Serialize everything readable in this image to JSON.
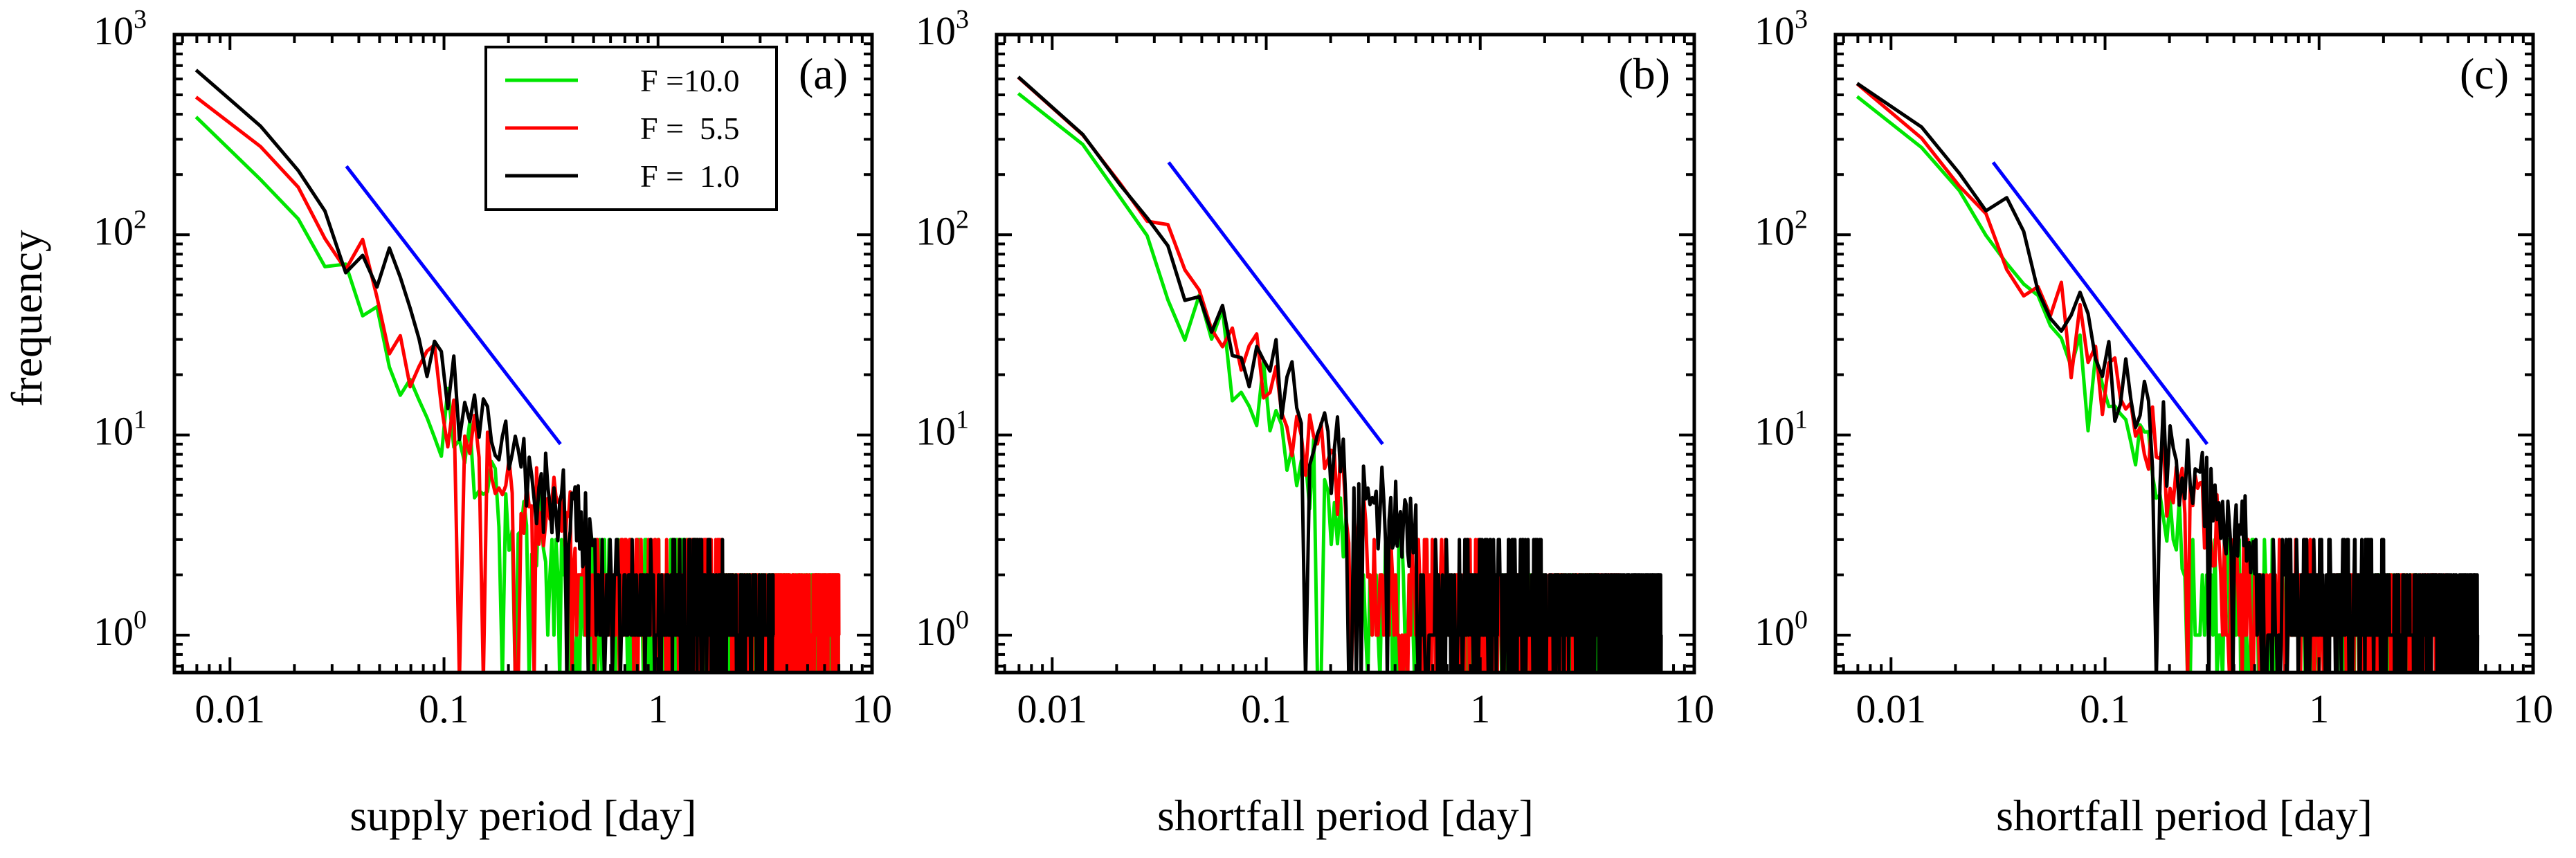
{
  "figure": {
    "ylabel": "frequency",
    "legend": {
      "panel": "a",
      "entries": [
        {
          "label": "F =10.0",
          "color": "#00e600"
        },
        {
          "label": "F =  5.5",
          "color": "#ff0000"
        },
        {
          "label": "F =  1.0",
          "color": "#000000"
        }
      ]
    },
    "reference_line_color": "#0000ff"
  },
  "chart_data": [
    {
      "type": "line",
      "panel_label": "(a)",
      "xlabel": "supply period  [day]",
      "ylabel": "frequency",
      "xscale": "log",
      "yscale": "log",
      "xlim": [
        0.0055,
        10
      ],
      "ylim": [
        0.65,
        1000
      ],
      "x_ticks": [
        0.01,
        0.1,
        1,
        10
      ],
      "x_tick_labels": [
        "0.01",
        "0.1",
        "1",
        "10"
      ],
      "y_ticks": [
        1,
        10,
        100,
        1000
      ],
      "y_tick_labels": [
        {
          "base": "10",
          "exp": "0"
        },
        {
          "base": "10",
          "exp": "1"
        },
        {
          "base": "10",
          "exp": "2"
        },
        {
          "base": "10",
          "exp": "3"
        }
      ],
      "reference_line": {
        "x": [
          0.035,
          0.35
        ],
        "y": [
          220,
          9
        ],
        "label": "power-law guide"
      },
      "series": [
        {
          "name": "F =10.0",
          "color": "#00e600",
          "x_end": 7.0,
          "key_points": [
            [
              0.007,
              400
            ],
            [
              0.014,
              180
            ],
            [
              0.02,
              130
            ],
            [
              0.028,
              70
            ],
            [
              0.04,
              50
            ],
            [
              0.055,
              30
            ],
            [
              0.075,
              15
            ],
            [
              0.1,
              12
            ],
            [
              0.14,
              8
            ],
            [
              0.2,
              4
            ],
            [
              0.3,
              3
            ],
            [
              0.5,
              2
            ],
            [
              1.0,
              1.5
            ],
            [
              2.0,
              1.2
            ],
            [
              4.0,
              1
            ],
            [
              7.0,
              1
            ]
          ]
        },
        {
          "name": "F =  5.5",
          "color": "#ff0000",
          "x_end": 7.0,
          "key_points": [
            [
              0.007,
              500
            ],
            [
              0.014,
              270
            ],
            [
              0.02,
              180
            ],
            [
              0.028,
              90
            ],
            [
              0.04,
              70
            ],
            [
              0.055,
              40
            ],
            [
              0.075,
              22
            ],
            [
              0.1,
              15
            ],
            [
              0.14,
              9
            ],
            [
              0.2,
              6
            ],
            [
              0.3,
              4
            ],
            [
              0.5,
              2.5
            ],
            [
              1.0,
              1.6
            ],
            [
              2.0,
              1.3
            ],
            [
              4.0,
              1
            ],
            [
              7.0,
              1
            ]
          ]
        },
        {
          "name": "F =  1.0",
          "color": "#000000",
          "x_end": 3.5,
          "key_points": [
            [
              0.007,
              680
            ],
            [
              0.014,
              350
            ],
            [
              0.02,
              230
            ],
            [
              0.028,
              130
            ],
            [
              0.04,
              95
            ],
            [
              0.055,
              55
            ],
            [
              0.075,
              30
            ],
            [
              0.1,
              20
            ],
            [
              0.14,
              12
            ],
            [
              0.2,
              8
            ],
            [
              0.3,
              5
            ],
            [
              0.5,
              3
            ],
            [
              1.0,
              2
            ],
            [
              2.0,
              1.3
            ],
            [
              3.5,
              1
            ]
          ]
        }
      ]
    },
    {
      "type": "line",
      "panel_label": "(b)",
      "xlabel": "shortfall period  [day]",
      "ylabel": "frequency",
      "xscale": "log",
      "yscale": "log",
      "xlim": [
        0.0055,
        10
      ],
      "ylim": [
        0.65,
        1000
      ],
      "x_ticks": [
        0.01,
        0.1,
        1,
        10
      ],
      "x_tick_labels": [
        "0.01",
        "0.1",
        "1",
        "10"
      ],
      "y_ticks": [
        1,
        10,
        100,
        1000
      ],
      "y_tick_labels": [
        {
          "base": "10",
          "exp": "0"
        },
        {
          "base": "10",
          "exp": "1"
        },
        {
          "base": "10",
          "exp": "2"
        },
        {
          "base": "10",
          "exp": "3"
        }
      ],
      "reference_line": {
        "x": [
          0.035,
          0.35
        ],
        "y": [
          230,
          9
        ],
        "label": "power-law guide"
      },
      "series": [
        {
          "name": "F =10.0",
          "color": "#00e600",
          "x_end": 3.5,
          "key_points": [
            [
              0.007,
              500
            ],
            [
              0.014,
              280
            ],
            [
              0.02,
              170
            ],
            [
              0.028,
              100
            ],
            [
              0.04,
              50
            ],
            [
              0.055,
              35
            ],
            [
              0.075,
              22
            ],
            [
              0.1,
              15
            ],
            [
              0.14,
              9
            ],
            [
              0.2,
              4
            ],
            [
              0.3,
              2.2
            ],
            [
              0.5,
              1.4
            ],
            [
              1.0,
              1.1
            ],
            [
              2.0,
              1
            ],
            [
              3.5,
              1
            ]
          ]
        },
        {
          "name": "F =  5.5",
          "color": "#ff0000",
          "x_end": 4.5,
          "key_points": [
            [
              0.007,
              600
            ],
            [
              0.014,
              320
            ],
            [
              0.02,
              190
            ],
            [
              0.028,
              110
            ],
            [
              0.04,
              65
            ],
            [
              0.055,
              45
            ],
            [
              0.075,
              28
            ],
            [
              0.1,
              20
            ],
            [
              0.14,
              12
            ],
            [
              0.2,
              6
            ],
            [
              0.3,
              3
            ],
            [
              0.5,
              2
            ],
            [
              1.0,
              1.3
            ],
            [
              2.0,
              1.1
            ],
            [
              4.5,
              1
            ]
          ]
        },
        {
          "name": "F =  1.0",
          "color": "#000000",
          "x_end": 7.0,
          "key_points": [
            [
              0.007,
              600
            ],
            [
              0.014,
              330
            ],
            [
              0.02,
              200
            ],
            [
              0.028,
              120
            ],
            [
              0.04,
              75
            ],
            [
              0.055,
              50
            ],
            [
              0.075,
              32
            ],
            [
              0.1,
              22
            ],
            [
              0.14,
              13
            ],
            [
              0.2,
              8
            ],
            [
              0.3,
              5
            ],
            [
              0.5,
              3
            ],
            [
              1.0,
              2
            ],
            [
              2.0,
              1.3
            ],
            [
              4.0,
              1.1
            ],
            [
              7.0,
              1
            ]
          ]
        }
      ]
    },
    {
      "type": "line",
      "panel_label": "(c)",
      "xlabel": "shortfall period  [day]",
      "ylabel": "frequency",
      "xscale": "log",
      "yscale": "log",
      "xlim": [
        0.0055,
        10
      ],
      "ylim": [
        0.65,
        1000
      ],
      "x_ticks": [
        0.01,
        0.1,
        1,
        10
      ],
      "x_tick_labels": [
        "0.01",
        "0.1",
        "1",
        "10"
      ],
      "y_ticks": [
        1,
        10,
        100,
        1000
      ],
      "y_tick_labels": [
        {
          "base": "10",
          "exp": "0"
        },
        {
          "base": "10",
          "exp": "1"
        },
        {
          "base": "10",
          "exp": "2"
        },
        {
          "base": "10",
          "exp": "3"
        }
      ],
      "reference_line": {
        "x": [
          0.03,
          0.3
        ],
        "y": [
          230,
          9
        ],
        "label": "power-law guide"
      },
      "series": [
        {
          "name": "F =10.0",
          "color": "#00e600",
          "x_end": 3.0,
          "key_points": [
            [
              0.007,
              520
            ],
            [
              0.014,
              280
            ],
            [
              0.02,
              170
            ],
            [
              0.028,
              100
            ],
            [
              0.04,
              45
            ],
            [
              0.055,
              35
            ],
            [
              0.075,
              20
            ],
            [
              0.1,
              14
            ],
            [
              0.14,
              9
            ],
            [
              0.2,
              4
            ],
            [
              0.3,
              2.2
            ],
            [
              0.5,
              1.4
            ],
            [
              1.0,
              1.1
            ],
            [
              3.0,
              1
            ]
          ]
        },
        {
          "name": "F =  5.5",
          "color": "#ff0000",
          "x_end": 4.0,
          "key_points": [
            [
              0.007,
              600
            ],
            [
              0.014,
              320
            ],
            [
              0.02,
              190
            ],
            [
              0.028,
              120
            ],
            [
              0.04,
              65
            ],
            [
              0.055,
              45
            ],
            [
              0.075,
              28
            ],
            [
              0.1,
              20
            ],
            [
              0.14,
              12
            ],
            [
              0.2,
              6
            ],
            [
              0.3,
              3.5
            ],
            [
              0.5,
              2
            ],
            [
              1.0,
              1.3
            ],
            [
              2.0,
              1.1
            ],
            [
              4.0,
              1
            ]
          ]
        },
        {
          "name": "F =  1.0",
          "color": "#000000",
          "x_end": 5.5,
          "key_points": [
            [
              0.007,
              600
            ],
            [
              0.014,
              330
            ],
            [
              0.02,
              210
            ],
            [
              0.028,
              130
            ],
            [
              0.04,
              80
            ],
            [
              0.055,
              50
            ],
            [
              0.075,
              32
            ],
            [
              0.1,
              22
            ],
            [
              0.14,
              13
            ],
            [
              0.2,
              8
            ],
            [
              0.3,
              5
            ],
            [
              0.5,
              3
            ],
            [
              1.0,
              2
            ],
            [
              2.0,
              1.3
            ],
            [
              5.5,
              1
            ]
          ]
        }
      ]
    }
  ]
}
